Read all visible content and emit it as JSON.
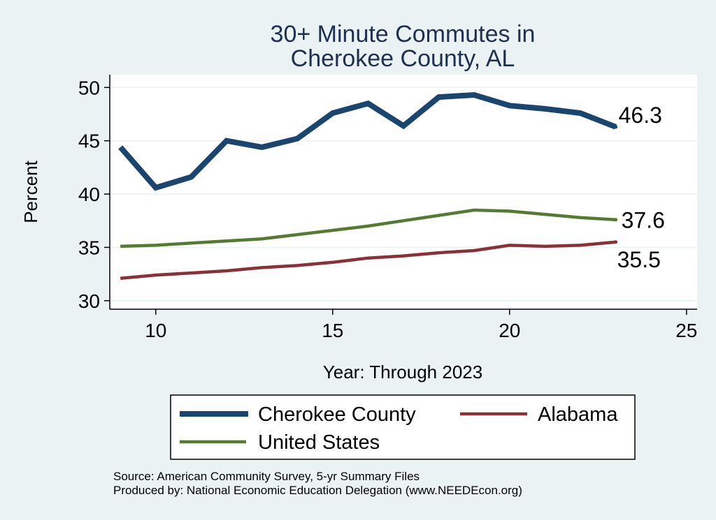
{
  "chart_data": {
    "type": "line",
    "title": [
      "30+ Minute Commutes in",
      "Cherokee County, AL"
    ],
    "xlabel": "Year: Through 2023",
    "ylabel": "Percent",
    "xlim": [
      8.7,
      25.3
    ],
    "ylim": [
      29.2,
      51.2
    ],
    "xticks": [
      10,
      15,
      20,
      25
    ],
    "yticks": [
      30,
      35,
      40,
      45,
      50
    ],
    "grid": true,
    "x": [
      9,
      10,
      11,
      12,
      13,
      14,
      15,
      16,
      17,
      18,
      19,
      20,
      21,
      22,
      23
    ],
    "series": [
      {
        "name": "Cherokee County",
        "color": "#1a456e",
        "values": [
          44.4,
          40.6,
          41.6,
          45.0,
          44.4,
          45.2,
          47.6,
          48.5,
          46.4,
          49.1,
          49.3,
          48.3,
          48.0,
          47.6,
          46.3
        ],
        "end_label": "46.3"
      },
      {
        "name": "Alabama",
        "color": "#8b3036",
        "values": [
          32.1,
          32.4,
          32.6,
          32.8,
          33.1,
          33.3,
          33.6,
          34.0,
          34.2,
          34.5,
          34.7,
          35.2,
          35.1,
          35.2,
          35.5
        ],
        "end_label": "35.5"
      },
      {
        "name": "United States",
        "color": "#557a31",
        "values": [
          35.1,
          35.2,
          35.4,
          35.6,
          35.8,
          36.2,
          36.6,
          37.0,
          37.5,
          38.0,
          38.5,
          38.4,
          38.1,
          37.8,
          37.6
        ],
        "end_label": "37.6"
      }
    ],
    "legend_position": "bottom",
    "notes": [
      "Source: American Community Survey, 5-yr Summary Files",
      "Produced by: National Economic Education Delegation (www.NEEDEcon.org)"
    ]
  }
}
